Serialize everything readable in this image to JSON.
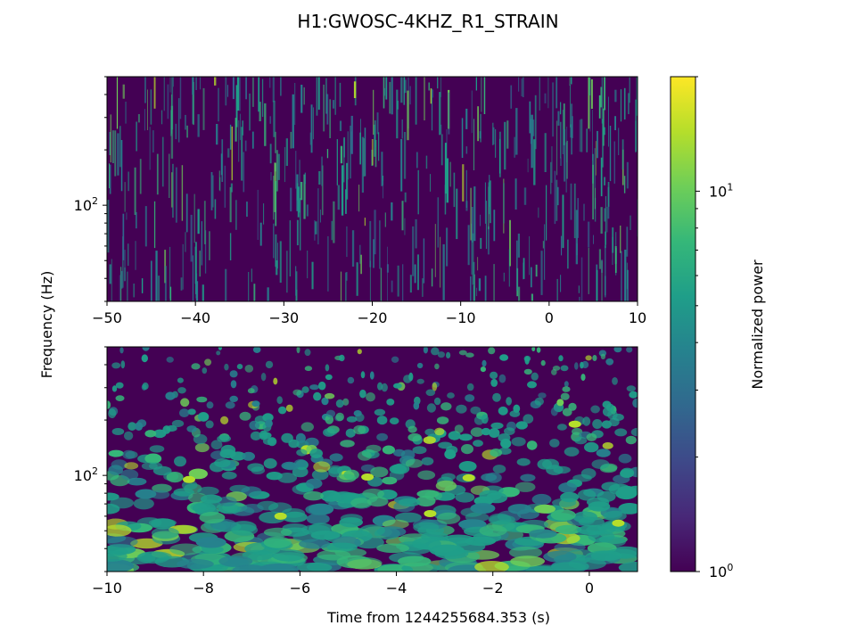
{
  "title": "H1:GWOSC-4KHZ_R1_STRAIN",
  "colormap": [
    "#440154",
    "#482878",
    "#3e4989",
    "#31688e",
    "#26828e",
    "#1f9e89",
    "#35b779",
    "#6ece58",
    "#b5de2b",
    "#fde725"
  ],
  "chart_data": [
    {
      "type": "heatmap",
      "name": "top-panel",
      "x": {
        "range": [
          -50,
          10
        ],
        "ticks": [
          -50,
          -40,
          -30,
          -20,
          -10,
          0,
          10
        ],
        "label": ""
      },
      "y": {
        "scale": "log",
        "range": [
          30,
          500
        ],
        "ticks": [
          100
        ],
        "tick_labels": [
          "10^2"
        ],
        "label": "Frequency (Hz)"
      },
      "description": "Q-transform over 60 s; thin vertical streaks of normalized power mostly 1-5 across all frequencies"
    },
    {
      "type": "heatmap",
      "name": "bottom-panel",
      "x": {
        "range": [
          -10,
          1
        ],
        "ticks": [
          -10,
          -8,
          -6,
          -4,
          -2,
          0
        ],
        "label": "Time from 1244255684.353 (s)"
      },
      "y": {
        "scale": "log",
        "range": [
          30,
          500
        ],
        "ticks": [
          100
        ],
        "tick_labels": [
          "10^2"
        ],
        "label": ""
      },
      "description": "Q-transform over 11 s; blobs elongate in time at low frequency, brighter spots near -8.3 s and -2.5 s around 100 Hz"
    }
  ],
  "colorbar": {
    "label": "Normalized power",
    "scale": "log",
    "range": [
      1,
      20
    ],
    "ticks": [
      1,
      10
    ],
    "tick_labels": [
      "10^0",
      "10^1"
    ]
  }
}
